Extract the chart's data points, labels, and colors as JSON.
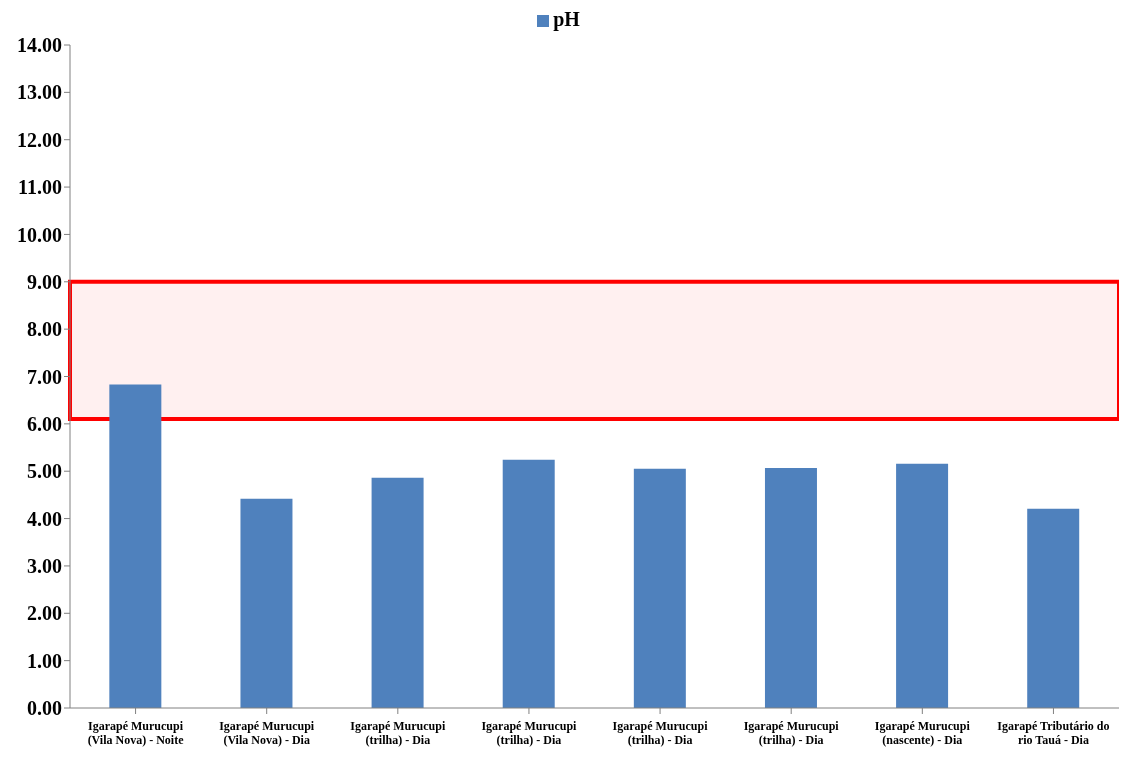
{
  "chart_data": {
    "type": "bar",
    "categories": [
      "Igarapé Murucupi (Vila Nova) - Noite",
      "Igarapé Murucupi (Vila Nova) - Dia",
      "Igarapé Murucupi (trilha) - Dia",
      "Igarapé Murucupi (trilha) - Dia",
      "Igarapé Murucupi (trilha) - Dia",
      "Igarapé Murucupi (trilha) - Dia",
      "Igarapé Murucupi (nascente) - Dia",
      "Igarapé Tributário do rio Tauá - Dia"
    ],
    "series": [
      {
        "name": "pH",
        "color": "#4f81bd",
        "values": [
          6.83,
          4.42,
          4.86,
          5.24,
          5.05,
          5.07,
          5.16,
          4.21
        ]
      }
    ],
    "ylim": [
      0,
      14
    ],
    "yticks": [
      {
        "value": 0,
        "label": "0.00"
      },
      {
        "value": 1,
        "label": "1.00"
      },
      {
        "value": 2,
        "label": "2.00"
      },
      {
        "value": 3,
        "label": "3.00"
      },
      {
        "value": 4,
        "label": "4.00"
      },
      {
        "value": 5,
        "label": "5.00"
      },
      {
        "value": 6,
        "label": "6.00"
      },
      {
        "value": 7,
        "label": "7.00"
      },
      {
        "value": 8,
        "label": "8.00"
      },
      {
        "value": 9,
        "label": "9.00"
      },
      {
        "value": 10,
        "label": "10.00"
      },
      {
        "value": 11,
        "label": "11.00"
      },
      {
        "value": 12,
        "label": "12.00"
      },
      {
        "value": 13,
        "label": "13.00"
      },
      {
        "value": 14,
        "label": "14.00"
      }
    ],
    "bands": [
      {
        "axis": "y",
        "from": 6.1,
        "to": 9,
        "color": "#ff0000"
      }
    ],
    "grid": false,
    "legend": "top"
  }
}
